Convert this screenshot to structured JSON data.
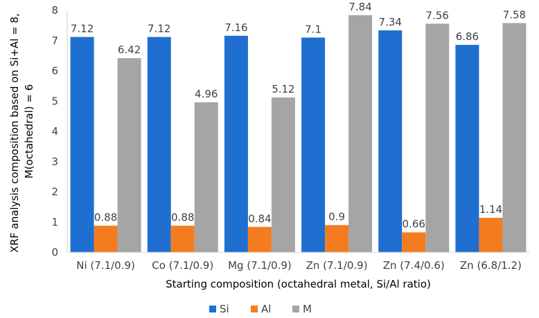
{
  "chart_data": {
    "type": "bar",
    "categories": [
      "Ni (7.1/0.9)",
      "Co (7.1/0.9)",
      "Mg (7.1/0.9)",
      "Zn (7.1/0.9)",
      "Zn (7.4/0.6)",
      "Zn (6.8/1.2)"
    ],
    "series": [
      {
        "name": "Si",
        "color": "#1f6fd1",
        "values": [
          7.12,
          7.12,
          7.16,
          7.1,
          7.34,
          6.86
        ],
        "labels": [
          "7.12",
          "7.12",
          "7.16",
          "7.1",
          "7.34",
          "6.86"
        ]
      },
      {
        "name": "Al",
        "color": "#f47c20",
        "values": [
          0.88,
          0.88,
          0.84,
          0.9,
          0.66,
          1.14
        ],
        "labels": [
          "0.88",
          "0.88",
          "0.84",
          "0.9",
          "0.66",
          "1.14"
        ]
      },
      {
        "name": "M",
        "color": "#a5a5a5",
        "values": [
          6.42,
          4.96,
          5.12,
          7.84,
          7.56,
          7.58
        ],
        "labels": [
          "6.42",
          "4.96",
          "5.12",
          "7.84",
          "7.56",
          "7.58"
        ]
      }
    ],
    "xlabel": "Starting composition (octahedral metal, Si/Al ratio)",
    "ylabel_lines": [
      "XRF analysis composition based on Si+Al = 8,",
      "M(octahedral) = 6"
    ],
    "ylim": [
      0,
      8
    ],
    "yticks": [
      "0",
      "1",
      "2",
      "3",
      "4",
      "5",
      "6",
      "7",
      "8"
    ],
    "grid": false,
    "legend_position": "bottom"
  }
}
